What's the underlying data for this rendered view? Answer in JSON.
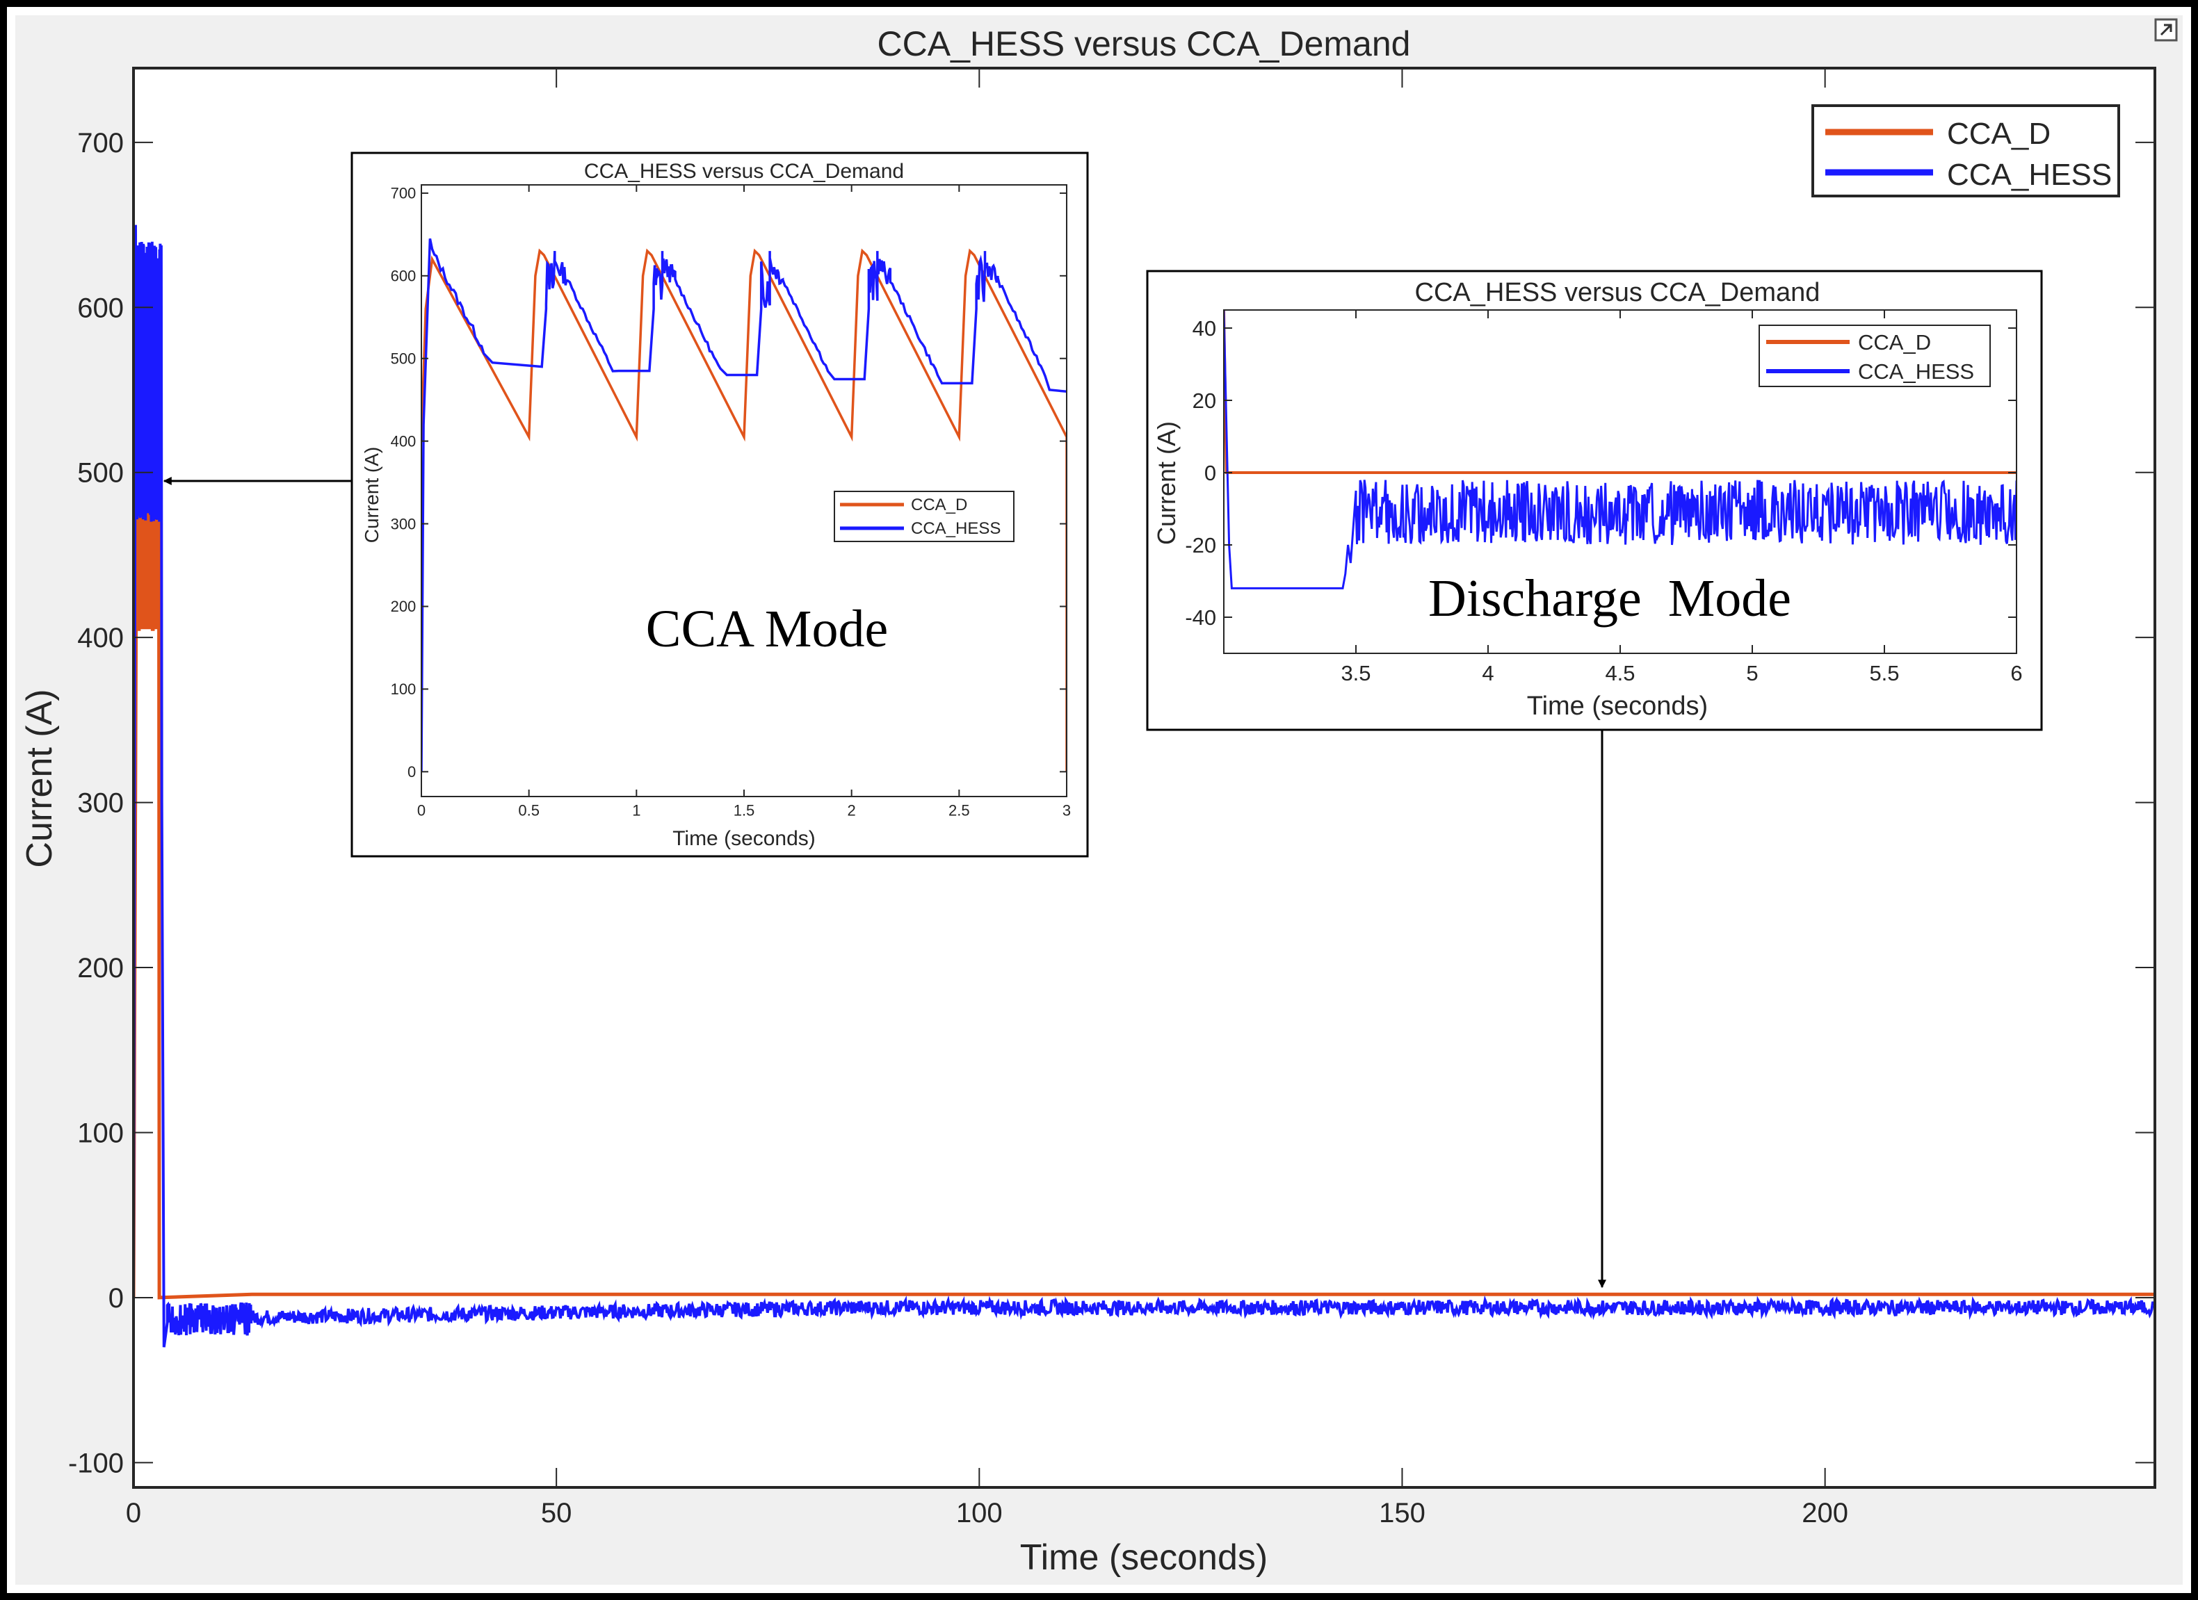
{
  "window": {
    "corner_icon": "expand-icon"
  },
  "colors": {
    "demand": "#e0541b",
    "hess": "#1a1aff",
    "axes": "#262626",
    "background": "#ffffff",
    "figure_bg": "#f0f0f0"
  },
  "main_chart": {
    "title": "CCA_HESS versus CCA_Demand",
    "xlabel": "Time (seconds)",
    "ylabel": "Current (A)",
    "xlim": [
      0,
      239
    ],
    "ylim": [
      -115,
      745
    ],
    "xticks": [
      0,
      50,
      100,
      150,
      200
    ],
    "xtick_labels": [
      "0",
      "50",
      "100",
      "150",
      "200"
    ],
    "yticks": [
      -100,
      0,
      100,
      200,
      300,
      400,
      500,
      600,
      700
    ],
    "ytick_labels": [
      "-100",
      "0",
      "100",
      "200",
      "300",
      "400",
      "500",
      "600",
      "700"
    ],
    "legend": [
      "CCA_D",
      "CCA_HESS"
    ]
  },
  "inset_cca": {
    "title": "CCA_HESS versus CCA_Demand",
    "xlabel": "Time (seconds)",
    "ylabel": "Current (A)",
    "xticks": [
      0,
      0.5,
      1,
      1.5,
      2,
      2.5,
      3
    ],
    "xtick_labels": [
      "0",
      "0.5",
      "1",
      "1.5",
      "2",
      "2.5",
      "3"
    ],
    "yticks": [
      0,
      100,
      200,
      300,
      400,
      500,
      600,
      700
    ],
    "ytick_labels": [
      "0",
      "100",
      "200",
      "300",
      "400",
      "500",
      "600",
      "700"
    ],
    "legend": [
      "CCA_D",
      "CCA_HESS"
    ],
    "annotation": "CCA Mode"
  },
  "inset_discharge": {
    "title": "CCA_HESS versus CCA_Demand",
    "xlabel": "Time (seconds)",
    "ylabel": "Current (A)",
    "xticks": [
      3.5,
      4,
      4.5,
      5,
      5.5,
      6
    ],
    "xtick_labels": [
      "3.5",
      "4",
      "4.5",
      "5",
      "5.5",
      "6"
    ],
    "yticks": [
      -40,
      -20,
      0,
      20,
      40
    ],
    "ytick_labels": [
      "-40",
      "-20",
      "0",
      "20",
      "40"
    ],
    "legend": [
      "CCA_D",
      "CCA_HESS"
    ],
    "annotation": "Discharge  Mode"
  },
  "chart_data": [
    {
      "type": "line",
      "title": "CCA_HESS versus CCA_Demand",
      "xlabel": "Time (seconds)",
      "ylabel": "Current (A)",
      "xlim": [
        0,
        239
      ],
      "ylim": [
        -115,
        745
      ],
      "grid": false,
      "legend_position": "top-right",
      "series": [
        {
          "name": "CCA_D",
          "x": [
            0,
            0.3,
            0.5,
            3.0,
            3.05,
            14,
            239
          ],
          "y": [
            0,
            400,
            480,
            480,
            0,
            2,
            2
          ]
        },
        {
          "name": "CCA_HESS",
          "x": [
            0,
            0.3,
            3.3,
            3.6,
            10,
            30,
            60,
            239
          ],
          "y": [
            0,
            650,
            635,
            -30,
            -10,
            -8,
            -6,
            -5
          ]
        }
      ]
    },
    {
      "type": "line",
      "title": "CCA_HESS versus CCA_Demand",
      "xlabel": "Time (seconds)",
      "ylabel": "Current (A)",
      "xlim": [
        0,
        3
      ],
      "ylim": [
        -30,
        710
      ],
      "legend_position": "center-right",
      "series": [
        {
          "name": "CCA_D",
          "x": [
            0,
            0.05,
            0.5,
            0.52,
            0.55,
            1.0,
            1.02,
            1.05,
            1.5,
            1.52,
            1.55,
            2.0,
            2.02,
            2.05,
            2.5,
            2.52,
            2.55,
            3.0,
            3.0
          ],
          "y": [
            400,
            620,
            405,
            590,
            630,
            405,
            590,
            630,
            405,
            590,
            630,
            405,
            590,
            630,
            405,
            590,
            630,
            410,
            0
          ]
        },
        {
          "name": "CCA_HESS",
          "x": [
            0,
            0.05,
            0.3,
            0.55,
            0.6,
            0.62,
            0.95,
            1.1,
            1.12,
            1.45,
            1.6,
            1.62,
            1.95,
            2.1,
            2.12,
            2.45,
            2.6,
            2.62,
            3.0
          ],
          "y": [
            0,
            645,
            500,
            490,
            625,
            630,
            485,
            625,
            630,
            480,
            625,
            630,
            475,
            625,
            630,
            470,
            625,
            630,
            460
          ]
        }
      ]
    },
    {
      "type": "line",
      "title": "CCA_HESS versus CCA_Demand",
      "xlabel": "Time (seconds)",
      "ylabel": "Current (A)",
      "xlim": [
        3.0,
        6.0
      ],
      "ylim": [
        -50,
        45
      ],
      "legend_position": "top-right",
      "series": [
        {
          "name": "CCA_D",
          "x": [
            3.0,
            6.0
          ],
          "y": [
            0,
            0
          ]
        },
        {
          "name": "CCA_HESS",
          "x": [
            3.0,
            3.02,
            3.05,
            3.45,
            3.5,
            6.0
          ],
          "y": [
            45,
            -30,
            -32,
            -32,
            -10,
            -10
          ]
        }
      ]
    }
  ]
}
